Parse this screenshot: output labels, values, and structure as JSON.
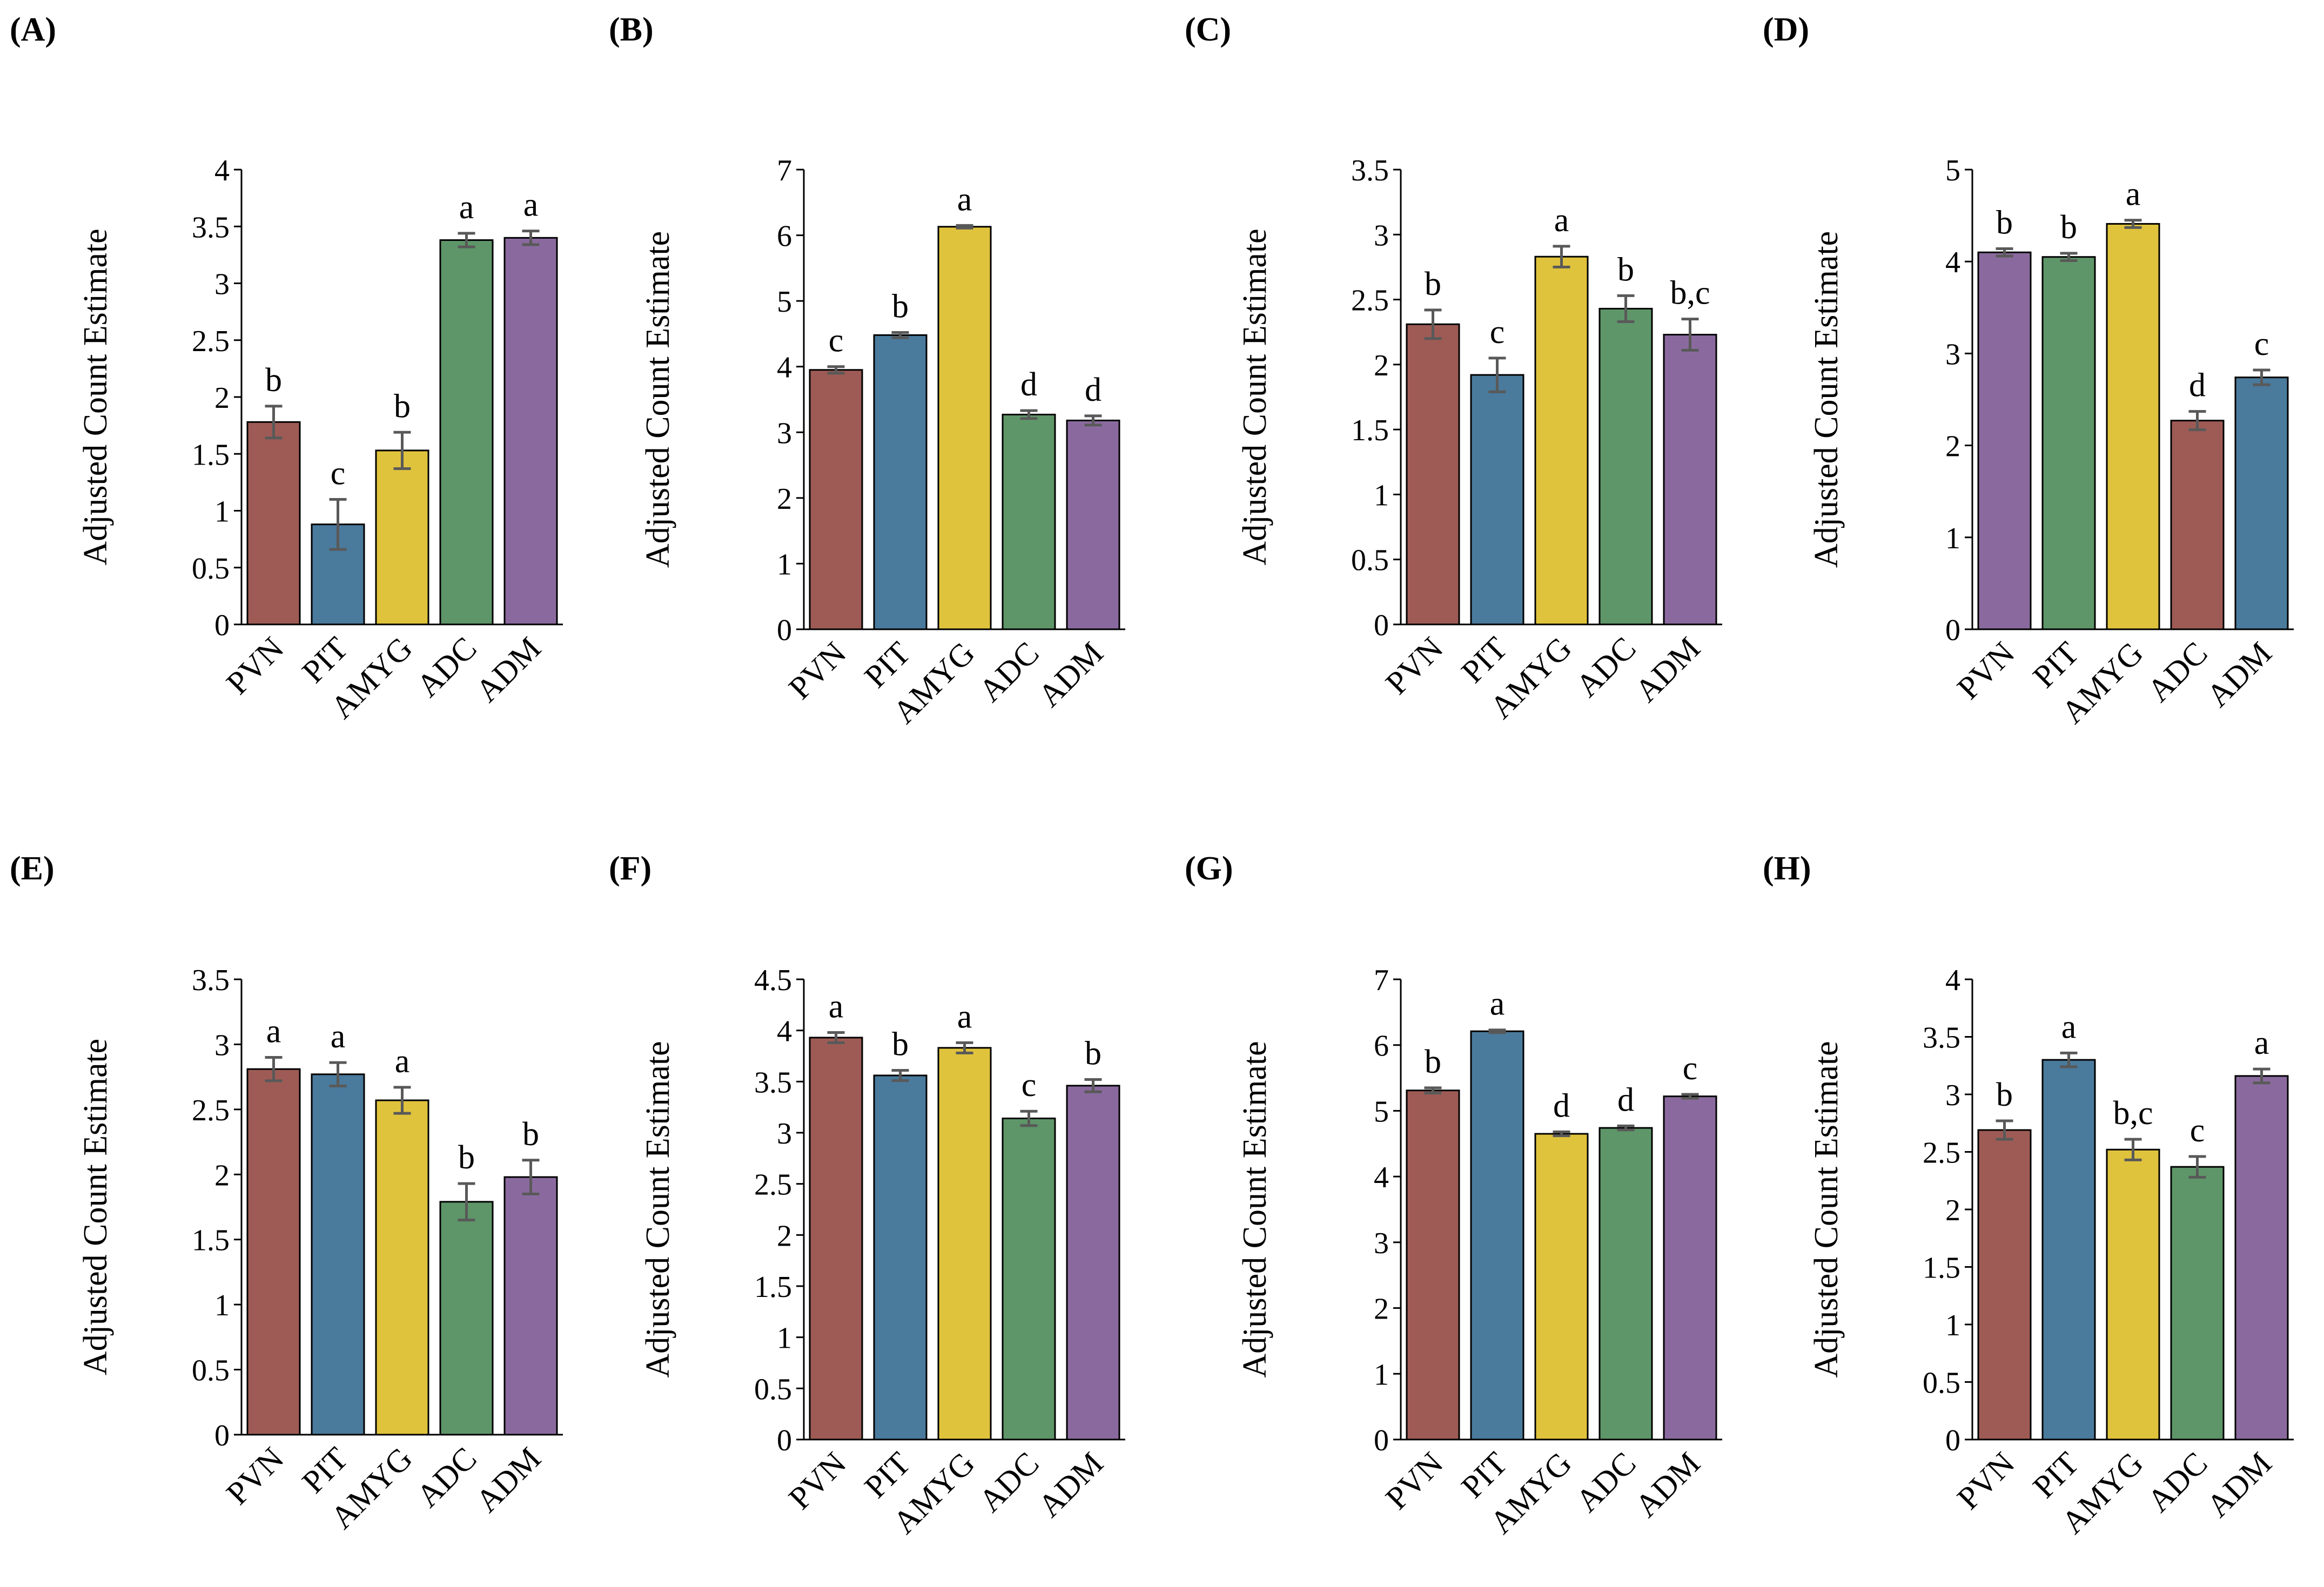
{
  "colors": {
    "PVN": "#9e5b55",
    "PIT": "#4a7a9c",
    "AMYG": "#e0c33d",
    "ADC": "#5e9669",
    "ADM": "#8a6a9e",
    "error_bar": "#595959"
  },
  "chart_data": [
    {
      "panel": "(A)",
      "type": "bar",
      "ylabel": "Adjusted Count Estimate",
      "categories": [
        "PVN",
        "PIT",
        "AMYG",
        "ADC",
        "ADM"
      ],
      "bar_colors": [
        "PVN",
        "PIT",
        "AMYG",
        "ADC",
        "ADM"
      ],
      "values": [
        1.78,
        0.88,
        1.53,
        3.38,
        3.4
      ],
      "errors": [
        0.14,
        0.22,
        0.16,
        0.06,
        0.06
      ],
      "letters": [
        "b",
        "c",
        "b",
        "a",
        "a"
      ],
      "ylim": [
        0,
        4
      ],
      "yticks": [
        "0",
        "0.5",
        "1",
        "1.5",
        "2",
        "2.5",
        "3",
        "3.5",
        "4"
      ]
    },
    {
      "panel": "(B)",
      "type": "bar",
      "ylabel": "Adjusted Count Estimate",
      "categories": [
        "PVN",
        "PIT",
        "AMYG",
        "ADC",
        "ADM"
      ],
      "bar_colors": [
        "PVN",
        "PIT",
        "AMYG",
        "ADC",
        "ADM"
      ],
      "values": [
        3.95,
        4.48,
        6.13,
        3.27,
        3.18
      ],
      "errors": [
        0.05,
        0.04,
        0.02,
        0.06,
        0.07
      ],
      "letters": [
        "c",
        "b",
        "a",
        "d",
        "d"
      ],
      "ylim": [
        0,
        7
      ],
      "yticks": [
        "0",
        "1",
        "2",
        "3",
        "4",
        "5",
        "6",
        "7"
      ]
    },
    {
      "panel": "(C)",
      "type": "bar",
      "ylabel": "Adjusted Count Estimate",
      "categories": [
        "PVN",
        "PIT",
        "AMYG",
        "ADC",
        "ADM"
      ],
      "bar_colors": [
        "PVN",
        "PIT",
        "AMYG",
        "ADC",
        "ADM"
      ],
      "values": [
        2.31,
        1.92,
        2.83,
        2.43,
        2.23
      ],
      "errors": [
        0.11,
        0.13,
        0.08,
        0.1,
        0.12
      ],
      "letters": [
        "b",
        "c",
        "a",
        "b",
        "b,c"
      ],
      "ylim": [
        0,
        3.5
      ],
      "yticks": [
        "0",
        "0.5",
        "1",
        "1.5",
        "2",
        "2.5",
        "3",
        "3.5"
      ]
    },
    {
      "panel": "(D)",
      "type": "bar",
      "ylabel": "Adjusted Count Estimate",
      "categories": [
        "PVN",
        "PIT",
        "AMYG",
        "ADC",
        "ADM"
      ],
      "bar_colors": [
        "ADM",
        "ADC",
        "AMYG",
        "PVN",
        "PIT"
      ],
      "values": [
        4.1,
        4.05,
        4.41,
        2.27,
        2.74
      ],
      "errors": [
        0.04,
        0.04,
        0.04,
        0.1,
        0.08
      ],
      "letters": [
        "b",
        "b",
        "a",
        "d",
        "c"
      ],
      "ylim": [
        0,
        5
      ],
      "yticks": [
        "0",
        "1",
        "2",
        "3",
        "4",
        "5"
      ]
    },
    {
      "panel": "(E)",
      "type": "bar",
      "ylabel": "Adjusted Count Estimate",
      "categories": [
        "PVN",
        "PIT",
        "AMYG",
        "ADC",
        "ADM"
      ],
      "bar_colors": [
        "PVN",
        "PIT",
        "AMYG",
        "ADC",
        "ADM"
      ],
      "values": [
        2.81,
        2.77,
        2.57,
        1.79,
        1.98
      ],
      "errors": [
        0.09,
        0.09,
        0.1,
        0.14,
        0.13
      ],
      "letters": [
        "a",
        "a",
        "a",
        "b",
        "b"
      ],
      "ylim": [
        0,
        3.5
      ],
      "yticks": [
        "0",
        "0.5",
        "1",
        "1.5",
        "2",
        "2.5",
        "3",
        "3.5"
      ]
    },
    {
      "panel": "(F)",
      "type": "bar",
      "ylabel": "Adjusted Count Estimate",
      "categories": [
        "PVN",
        "PIT",
        "AMYG",
        "ADC",
        "ADM"
      ],
      "bar_colors": [
        "PVN",
        "PIT",
        "AMYG",
        "ADC",
        "ADM"
      ],
      "values": [
        3.93,
        3.56,
        3.83,
        3.14,
        3.46
      ],
      "errors": [
        0.05,
        0.05,
        0.05,
        0.07,
        0.06
      ],
      "letters": [
        "a",
        "b",
        "a",
        "c",
        "b"
      ],
      "ylim": [
        0,
        4.5
      ],
      "yticks": [
        "0",
        "0.5",
        "1",
        "1.5",
        "2",
        "2.5",
        "3",
        "3.5",
        "4",
        "4.5"
      ]
    },
    {
      "panel": "(G)",
      "type": "bar",
      "ylabel": "Adjusted Count Estimate",
      "categories": [
        "PVN",
        "PIT",
        "AMYG",
        "ADC",
        "ADM"
      ],
      "bar_colors": [
        "PVN",
        "PIT",
        "AMYG",
        "ADC",
        "ADM"
      ],
      "values": [
        5.31,
        6.21,
        4.65,
        4.74,
        5.22
      ],
      "errors": [
        0.04,
        0.02,
        0.03,
        0.03,
        0.03
      ],
      "letters": [
        "b",
        "a",
        "d",
        "d",
        "c"
      ],
      "ylim": [
        0,
        7
      ],
      "yticks": [
        "0",
        "1",
        "2",
        "3",
        "4",
        "5",
        "6",
        "7"
      ]
    },
    {
      "panel": "(H)",
      "type": "bar",
      "ylabel": "Adjusted Count Estimate",
      "categories": [
        "PVN",
        "PIT",
        "AMYG",
        "ADC",
        "ADM"
      ],
      "bar_colors": [
        "PVN",
        "PIT",
        "AMYG",
        "ADC",
        "ADM"
      ],
      "values": [
        2.69,
        3.3,
        2.52,
        2.37,
        3.16
      ],
      "errors": [
        0.08,
        0.06,
        0.09,
        0.09,
        0.06
      ],
      "letters": [
        "b",
        "a",
        "b,c",
        "c",
        "a"
      ],
      "ylim": [
        0,
        4
      ],
      "yticks": [
        "0",
        "0.5",
        "1",
        "1.5",
        "2",
        "2.5",
        "3",
        "3.5",
        "4"
      ]
    }
  ]
}
